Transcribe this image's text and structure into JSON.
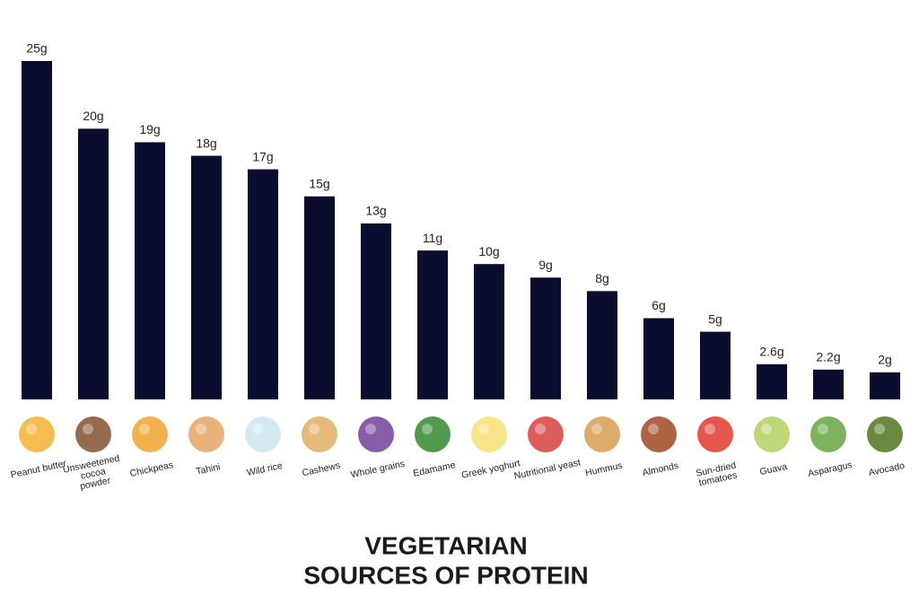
{
  "chart_data": {
    "type": "bar",
    "title": [
      "VEGETARIAN",
      "SOURCES OF PROTEIN"
    ],
    "categories": [
      "Peanut butter",
      "Unsweetened cocoa powder",
      "Chickpeas",
      "Tahini",
      "Wild rice",
      "Cashews",
      "Whole grains",
      "Edamame",
      "Greek yoghurt",
      "Nutritional yeast",
      "Hummus",
      "Almonds",
      "Sun-dried tomatoes",
      "Guava",
      "Asparagus",
      "Avocado"
    ],
    "values": [
      25,
      20,
      19,
      18,
      17,
      15,
      13,
      11,
      10,
      9,
      8,
      6,
      5,
      2.6,
      2.2,
      2
    ],
    "value_labels": [
      "25g",
      "20g",
      "19g",
      "18g",
      "17g",
      "15g",
      "13g",
      "11g",
      "10g",
      "9g",
      "8g",
      "6g",
      "5g",
      "2.6g",
      "2.2g",
      "2g"
    ],
    "color": "#0a0d2e"
  }
}
